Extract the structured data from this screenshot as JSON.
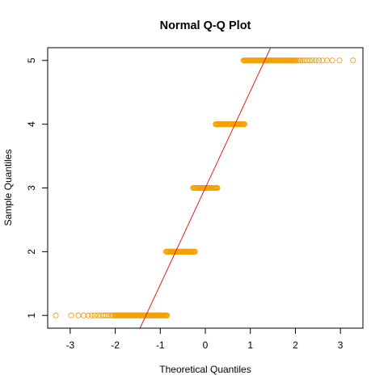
{
  "chart_data": {
    "type": "scatter",
    "title": "Normal Q-Q Plot",
    "xlabel": "Theoretical Quantiles",
    "ylabel": "Sample Quantiles",
    "xlim": [
      -3.5,
      3.5
    ],
    "ylim": [
      0.8,
      5.2
    ],
    "x_ticks": [
      -3,
      -2,
      -1,
      0,
      1,
      2,
      3
    ],
    "x_tick_labels": [
      "-3",
      "-2",
      "-1",
      "0",
      "1",
      "2",
      "3"
    ],
    "y_ticks": [
      1,
      2,
      3,
      4,
      5
    ],
    "y_tick_labels": [
      "1",
      "2",
      "3",
      "4",
      "5"
    ],
    "grid": false,
    "point_color": "#f5a000",
    "line_color": "#e0201b",
    "reference_line": {
      "x": [
        -1.45,
        1.45
      ],
      "y": [
        0.8,
        5.2
      ]
    },
    "clusters": [
      {
        "y": 1,
        "dense_x": [
          -2.0,
          -0.85
        ],
        "sparse_x": [
          -3.32,
          -2.98,
          -2.82,
          -2.7,
          -2.6,
          -2.52,
          -2.45,
          -2.38,
          -2.32,
          -2.26,
          -2.21,
          -2.16,
          -2.11,
          -2.07,
          -2.03
        ]
      },
      {
        "y": 2,
        "dense_x": [
          -0.87,
          -0.23
        ],
        "sparse_x": []
      },
      {
        "y": 3,
        "dense_x": [
          -0.27,
          0.27
        ],
        "sparse_x": []
      },
      {
        "y": 4,
        "dense_x": [
          0.23,
          0.87
        ],
        "sparse_x": []
      },
      {
        "y": 5,
        "dense_x": [
          0.85,
          2.0
        ],
        "sparse_x": [
          2.03,
          2.07,
          2.11,
          2.16,
          2.21,
          2.26,
          2.32,
          2.38,
          2.45,
          2.52,
          2.6,
          2.7,
          2.82,
          2.98,
          3.28
        ]
      }
    ]
  }
}
